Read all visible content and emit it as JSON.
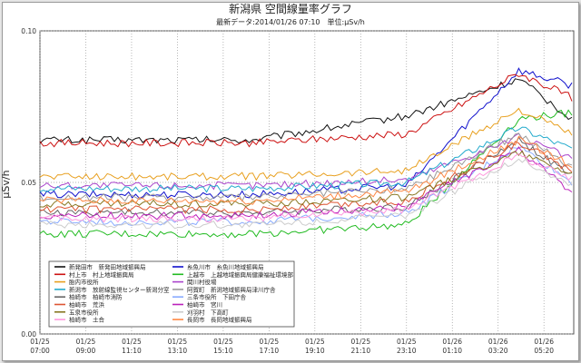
{
  "chart_data": {
    "type": "line",
    "title": "新潟県 空間線量率グラフ",
    "subtitle": "最新データ:2014/01/26 07:10　単位:μSv/h",
    "ylabel": "μSv/h",
    "xlabel": "",
    "ylim": [
      0.0,
      0.1
    ],
    "yticks": [
      "0.00",
      "0.05",
      "0.10"
    ],
    "xticks": [
      {
        "date": "01/25",
        "time": "07:00"
      },
      {
        "date": "01/25",
        "time": "09:00"
      },
      {
        "date": "01/25",
        "time": "11:10"
      },
      {
        "date": "01/25",
        "time": "13:10"
      },
      {
        "date": "01/25",
        "time": "15:10"
      },
      {
        "date": "01/25",
        "time": "17:10"
      },
      {
        "date": "01/25",
        "time": "19:10"
      },
      {
        "date": "01/25",
        "time": "21:10"
      },
      {
        "date": "01/25",
        "time": "23:10"
      },
      {
        "date": "01/26",
        "time": "01:10"
      },
      {
        "date": "01/26",
        "time": "03:20"
      },
      {
        "date": "01/26",
        "time": "05:20"
      }
    ],
    "grid": true,
    "legend_placement": "bottom-left inside",
    "series": [
      {
        "name": "新発田市　新発田地域振興局",
        "color": "#111111",
        "base": 0.064,
        "x1": 0.072,
        "peak": 0.084,
        "end": 0.071
      },
      {
        "name": "糸魚川市　糸魚川地域振興局",
        "color": "#1010cc",
        "base": 0.046,
        "x1": 0.049,
        "peak": 0.087,
        "end": 0.082
      },
      {
        "name": "村上市　村上地域振興局",
        "color": "#cc1111",
        "base": 0.063,
        "x1": 0.066,
        "peak": 0.086,
        "end": 0.078
      },
      {
        "name": "上越市　上越地域振興局健康福祉環境部",
        "color": "#22bb22",
        "base": 0.033,
        "x1": 0.036,
        "peak": 0.071,
        "end": 0.073
      },
      {
        "name": "胎内市役所",
        "color": "#e8a020",
        "base": 0.052,
        "x1": 0.054,
        "peak": 0.074,
        "end": 0.066
      },
      {
        "name": "関川村役場",
        "color": "#aa44cc",
        "base": 0.049,
        "x1": 0.051,
        "peak": 0.065,
        "end": 0.058
      },
      {
        "name": "新潟市　放射線監視センター新潟分室",
        "color": "#22aacc",
        "base": 0.048,
        "x1": 0.05,
        "peak": 0.068,
        "end": 0.061
      },
      {
        "name": "阿賀町　新潟地域振興局津川庁舎",
        "color": "#999999",
        "base": 0.045,
        "x1": 0.048,
        "peak": 0.066,
        "end": 0.055
      },
      {
        "name": "柏崎市　柏崎市消防",
        "color": "#666666",
        "base": 0.04,
        "x1": 0.042,
        "peak": 0.064,
        "end": 0.052
      },
      {
        "name": "三条市役所　下田庁舎",
        "color": "#88aaff",
        "base": 0.037,
        "x1": 0.04,
        "peak": 0.062,
        "end": 0.05
      },
      {
        "name": "柏崎市　荒浜",
        "color": "#dd5533",
        "base": 0.041,
        "x1": 0.044,
        "peak": 0.063,
        "end": 0.054
      },
      {
        "name": "柏崎市　宮川",
        "color": "#bb22bb",
        "base": 0.039,
        "x1": 0.042,
        "peak": 0.061,
        "end": 0.047
      },
      {
        "name": "五泉市役所",
        "color": "#887722",
        "base": 0.043,
        "x1": 0.045,
        "peak": 0.06,
        "end": 0.053
      },
      {
        "name": "刈羽村　下高町",
        "color": "#cccccc",
        "base": 0.036,
        "x1": 0.039,
        "peak": 0.058,
        "end": 0.049
      },
      {
        "name": "柏崎市　土合",
        "color": "#ff99dd",
        "base": 0.038,
        "x1": 0.041,
        "peak": 0.059,
        "end": 0.051
      },
      {
        "name": "長岡市　長岡地域振興局",
        "color": "#ff8844",
        "base": 0.044,
        "x1": 0.047,
        "peak": 0.064,
        "end": 0.056
      }
    ]
  }
}
